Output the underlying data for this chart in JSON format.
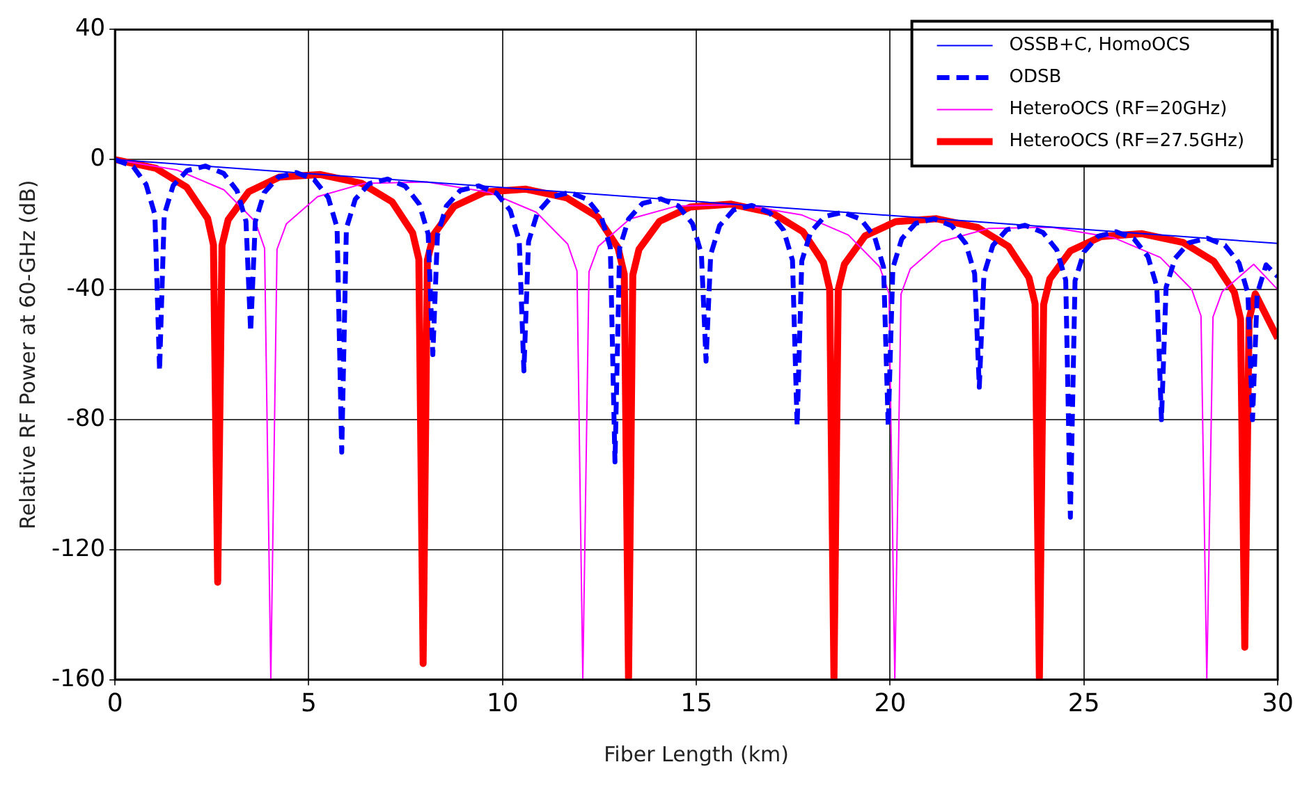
{
  "chart_data": {
    "type": "line",
    "xlabel": "Fiber Length (km)",
    "ylabel": "Relative RF Power at 60-GHz (dB)",
    "xlim": [
      0,
      30
    ],
    "xticks": [
      0,
      5,
      10,
      15,
      20,
      25,
      30
    ],
    "ylim": [
      -160,
      40
    ],
    "yticks": [
      -160,
      -120,
      -80,
      -40,
      0,
      40
    ],
    "grid": true,
    "legend": "top right",
    "marker": "none",
    "series": [
      {
        "name": "OSSB+C, HomoOCS",
        "color": "#0000ff",
        "line_style": "solid",
        "x": [
          0,
          30
        ],
        "values": [
          0,
          -25.8
        ]
      },
      {
        "name": "ODSB",
        "color": "#0000ff",
        "line_style": "dashed",
        "x": [
          0,
          0.47,
          0.8,
          1.03,
          1.15,
          1.27,
          1.5,
          1.86,
          2.33,
          2.8,
          3.15,
          3.38,
          3.5,
          3.62,
          3.85,
          4.21,
          4.68,
          5.14,
          5.5,
          5.73,
          5.85,
          5.97,
          6.2,
          6.56,
          7.03,
          7.49,
          7.85,
          8.08,
          8.2,
          8.32,
          8.55,
          8.91,
          9.38,
          9.84,
          10.2,
          10.43,
          10.55,
          10.67,
          10.9,
          11.26,
          11.73,
          12.19,
          12.55,
          12.78,
          12.9,
          13.02,
          13.25,
          13.61,
          14.08,
          14.54,
          14.9,
          15.13,
          15.25,
          15.37,
          15.6,
          15.96,
          16.43,
          16.89,
          17.25,
          17.48,
          17.6,
          17.72,
          17.95,
          18.31,
          18.78,
          19.24,
          19.6,
          19.83,
          19.95,
          20.07,
          20.3,
          20.66,
          21.13,
          21.59,
          21.95,
          22.18,
          22.3,
          22.42,
          22.65,
          23.01,
          23.48,
          23.94,
          24.3,
          24.53,
          24.65,
          24.77,
          25.0,
          25.36,
          25.83,
          26.29,
          26.65,
          26.88,
          27.0,
          27.12,
          27.35,
          27.71,
          28.18,
          28.64,
          29.0,
          29.23,
          29.35,
          29.47,
          29.7,
          30
        ],
        "values": [
          0,
          -2.2,
          -7.6,
          -17,
          -65,
          -17,
          -8,
          -3.4,
          -2,
          -4.2,
          -9.6,
          -19,
          -53,
          -19.1,
          -10.2,
          -5.4,
          -4,
          -6.2,
          -11.6,
          -20.9,
          -90,
          -21.1,
          -12.2,
          -7.4,
          -6,
          -8.2,
          -13.7,
          -22.9,
          -60,
          -23.2,
          -14.3,
          -9.5,
          -8.1,
          -10.3,
          -15.7,
          -25,
          -65,
          -25.2,
          -16.3,
          -11.5,
          -10.1,
          -12.3,
          -17.7,
          -27,
          -93,
          -27.2,
          -18.3,
          -13.5,
          -12.1,
          -14.3,
          -19.7,
          -29,
          -62,
          -29.2,
          -20.3,
          -15.5,
          -14.1,
          -16.3,
          -21.7,
          -31,
          -82,
          -31.2,
          -22.3,
          -17.5,
          -16.2,
          -18.3,
          -23.8,
          -33.1,
          -82,
          -33.3,
          -24.4,
          -19.6,
          -18.2,
          -20.4,
          -25.8,
          -35.1,
          -70,
          -35.3,
          -26.4,
          -21.6,
          -20.2,
          -22.4,
          -27.8,
          -37.1,
          -110,
          -37.3,
          -28.4,
          -23.6,
          -22.2,
          -24.4,
          -29.8,
          -39.1,
          -80,
          -39.3,
          -30.4,
          -25.6,
          -24.2,
          -26.4,
          -31.8,
          -41.1,
          -80,
          -41.3,
          -32.4,
          -36
        ]
      },
      {
        "name": "HeteroOCS (RF=20GHz)",
        "color": "#ff00ff",
        "line_style": "solid",
        "x": [
          0,
          1.6,
          2.81,
          3.62,
          3.86,
          4.02,
          4.18,
          4.42,
          5.23,
          6.44,
          8.05,
          9.66,
          10.87,
          11.68,
          11.92,
          12.07,
          12.23,
          12.47,
          13.28,
          14.49,
          16.1,
          17.71,
          18.92,
          19.73,
          19.97,
          20.12,
          20.28,
          20.52,
          21.33,
          22.54,
          24.15,
          25.76,
          26.97,
          27.78,
          28.02,
          28.17,
          28.33,
          28.57,
          29.38,
          30
        ],
        "values": [
          0,
          -3.2,
          -9.3,
          -19.1,
          -27.3,
          -160,
          -27.6,
          -19.8,
          -11.4,
          -7.3,
          -6.9,
          -10.1,
          -16.2,
          -26,
          -34.3,
          -160,
          -34.5,
          -26.7,
          -18.3,
          -14.3,
          -13.8,
          -17,
          -23.2,
          -33,
          -41.2,
          -160,
          -41.4,
          -33.6,
          -25.2,
          -21.2,
          -20.8,
          -24,
          -30.1,
          -39.9,
          -48.1,
          -160,
          -48.4,
          -40.6,
          -32.2,
          -40
        ]
      },
      {
        "name": "HeteroOCS (RF=27.5GHz)",
        "color": "#ff0000",
        "line_style": "solid",
        "x": [
          0,
          1.06,
          1.85,
          2.39,
          2.54,
          2.65,
          2.76,
          2.92,
          3.45,
          4.24,
          5.3,
          6.36,
          7.15,
          7.68,
          7.84,
          7.95,
          8.06,
          8.22,
          8.75,
          9.54,
          10.6,
          11.66,
          12.45,
          12.98,
          13.14,
          13.25,
          13.36,
          13.52,
          14.05,
          14.84,
          15.9,
          16.96,
          17.75,
          18.28,
          18.44,
          18.55,
          18.66,
          18.82,
          19.35,
          20.14,
          21.2,
          22.26,
          23.05,
          23.58,
          23.74,
          23.85,
          23.96,
          24.12,
          24.65,
          25.44,
          26.5,
          27.56,
          28.35,
          28.88,
          29.04,
          29.15,
          29.26,
          29.42,
          30
        ],
        "values": [
          0,
          -2.7,
          -8.5,
          -18.1,
          -26.2,
          -130,
          -26.4,
          -18.5,
          -9.9,
          -5.4,
          -4.6,
          -7.3,
          -13,
          -22.6,
          -30.7,
          -155,
          -30.9,
          -23.1,
          -14.4,
          -10,
          -9.1,
          -11.8,
          -17.6,
          -27.2,
          -35.3,
          -160,
          -35.5,
          -27.6,
          -19,
          -14.6,
          -13.7,
          -16.4,
          -22.2,
          -31.7,
          -39.9,
          -160,
          -40,
          -32.2,
          -23.5,
          -19.1,
          -18.2,
          -20.9,
          -26.7,
          -36.3,
          -44.4,
          -160,
          -44.6,
          -36.7,
          -28.1,
          -23.7,
          -22.8,
          -25.5,
          -31.3,
          -40.8,
          -49,
          -150,
          -49.2,
          -41.3,
          -55
        ]
      }
    ]
  }
}
